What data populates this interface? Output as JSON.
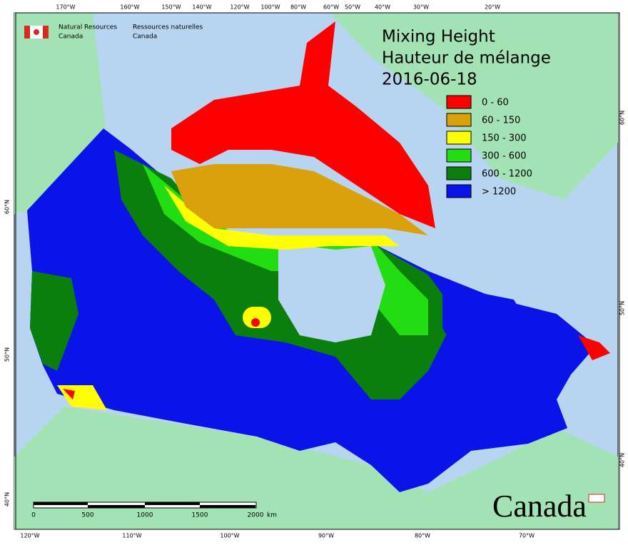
{
  "header": {
    "agency_en": [
      "Natural Resources",
      "Canada"
    ],
    "agency_fr": [
      "Ressources naturelles",
      "Canada"
    ]
  },
  "title": [
    "Mixing Height",
    "Hauteur de mélange",
    "2016-06-18"
  ],
  "legend": [
    {
      "label": "0 - 60",
      "color": "#ff0000"
    },
    {
      "label": "60 - 150",
      "color": "#dba10a"
    },
    {
      "label": "150 - 300",
      "color": "#ffff00"
    },
    {
      "label": "300 - 600",
      "color": "#22dd11"
    },
    {
      "label": "600 - 1200",
      "color": "#0b7f0b"
    },
    {
      "label": "> 1200",
      "color": "#0a14e8"
    }
  ],
  "graticule": {
    "top": [
      "170°W",
      "160°W",
      "150°W",
      "140°W",
      "120°W",
      "100°W",
      "80°W",
      "60°W",
      "50°W",
      "40°W",
      "30°W",
      "20°W"
    ],
    "bottom": [
      "120°W",
      "110°W",
      "100°W",
      "90°W",
      "80°W",
      "70°W"
    ],
    "left": [
      "60°N",
      "50°N",
      "40°N"
    ],
    "right": [
      "60°N",
      "50°N",
      "40°N"
    ]
  },
  "scale_bar": {
    "labels": [
      "0",
      "500",
      "1000",
      "1500",
      "2000"
    ],
    "unit": "km"
  },
  "wordmark": "Canada"
}
